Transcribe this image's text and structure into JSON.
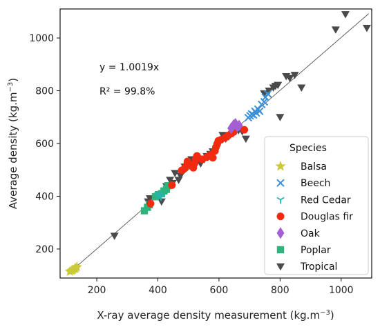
{
  "chart_data": {
    "type": "scatter",
    "xlabel": "X-ray average density measurement (kg.m",
    "ylabel": "Average density (kg.m",
    "unit_exponent": "−3",
    "xlim": [
      80,
      1100
    ],
    "ylim": [
      90,
      1110
    ],
    "xticks": [
      200,
      400,
      600,
      800,
      1000
    ],
    "yticks": [
      200,
      400,
      600,
      800,
      1000
    ],
    "grid": false,
    "legend_position": "lower-right",
    "legend_title": "Species",
    "annotations": {
      "equation": "y = 1.0019x",
      "r2": "R² = 99.8%"
    },
    "fit_line": {
      "slope": 1.0019,
      "x_range": [
        110,
        1090
      ],
      "color": "#555555"
    },
    "series": [
      {
        "name": "Balsa",
        "marker": "star",
        "color": "#c9c93a",
        "points": [
          [
            112,
            115
          ],
          [
            118,
            118
          ],
          [
            122,
            121
          ],
          [
            127,
            124
          ],
          [
            131,
            127
          ],
          [
            135,
            132
          ]
        ]
      },
      {
        "name": "Beech",
        "marker": "x",
        "color": "#3a8fd6",
        "points": [
          [
            696,
            698
          ],
          [
            702,
            705
          ],
          [
            707,
            712
          ],
          [
            713,
            708
          ],
          [
            718,
            722
          ],
          [
            722,
            716
          ],
          [
            728,
            730
          ],
          [
            733,
            722
          ],
          [
            740,
            748
          ],
          [
            748,
            758
          ],
          [
            752,
            775
          ],
          [
            760,
            788
          ]
        ]
      },
      {
        "name": "Red Cedar",
        "marker": "tri",
        "color": "#24b5b0",
        "points": [
          [
            399,
            405
          ],
          [
            404,
            410
          ],
          [
            408,
            403
          ],
          [
            411,
            398
          ]
        ]
      },
      {
        "name": "Douglas fir",
        "marker": "circle",
        "color": "#f22a10",
        "points": [
          [
            376,
            372
          ],
          [
            446,
            442
          ],
          [
            478,
            498
          ],
          [
            488,
            506
          ],
          [
            494,
            518
          ],
          [
            497,
            532
          ],
          [
            510,
            515
          ],
          [
            516,
            508
          ],
          [
            520,
            524
          ],
          [
            524,
            540
          ],
          [
            528,
            553
          ],
          [
            533,
            545
          ],
          [
            545,
            540
          ],
          [
            560,
            548
          ],
          [
            568,
            553
          ],
          [
            575,
            558
          ],
          [
            580,
            546
          ],
          [
            587,
            572
          ],
          [
            590,
            586
          ],
          [
            594,
            598
          ],
          [
            598,
            610
          ],
          [
            606,
            614
          ],
          [
            620,
            622
          ],
          [
            630,
            630
          ],
          [
            640,
            638
          ],
          [
            648,
            644
          ],
          [
            683,
            652
          ]
        ]
      },
      {
        "name": "Oak",
        "marker": "diamond",
        "color": "#a35fd3",
        "points": [
          [
            640,
            658
          ],
          [
            648,
            670
          ],
          [
            654,
            675
          ],
          [
            660,
            664
          ],
          [
            666,
            668
          ]
        ]
      },
      {
        "name": "Poplar",
        "marker": "square",
        "color": "#2fb47e",
        "points": [
          [
            356,
            345
          ],
          [
            366,
            358
          ],
          [
            372,
            368
          ],
          [
            392,
            398
          ],
          [
            402,
            406
          ],
          [
            412,
            410
          ],
          [
            420,
            420
          ],
          [
            428,
            426
          ],
          [
            433,
            440
          ]
        ]
      },
      {
        "name": "Tropical",
        "marker": "triangle-down",
        "color": "#4a4a4a",
        "points": [
          [
            258,
            250
          ],
          [
            368,
            380
          ],
          [
            374,
            392
          ],
          [
            412,
            380
          ],
          [
            428,
            438
          ],
          [
            440,
            462
          ],
          [
            448,
            450
          ],
          [
            456,
            488
          ],
          [
            468,
            462
          ],
          [
            474,
            478
          ],
          [
            480,
            492
          ],
          [
            488,
            512
          ],
          [
            500,
            520
          ],
          [
            510,
            540
          ],
          [
            518,
            530
          ],
          [
            528,
            542
          ],
          [
            540,
            524
          ],
          [
            552,
            540
          ],
          [
            560,
            552
          ],
          [
            572,
            560
          ],
          [
            580,
            570
          ],
          [
            592,
            580
          ],
          [
            600,
            600
          ],
          [
            612,
            632
          ],
          [
            622,
            618
          ],
          [
            632,
            626
          ],
          [
            646,
            638
          ],
          [
            664,
            650
          ],
          [
            676,
            646
          ],
          [
            688,
            618
          ],
          [
            748,
            790
          ],
          [
            764,
            800
          ],
          [
            778,
            812
          ],
          [
            785,
            818
          ],
          [
            793,
            822
          ],
          [
            800,
            700
          ],
          [
            820,
            855
          ],
          [
            832,
            848
          ],
          [
            848,
            860
          ],
          [
            870,
            812
          ],
          [
            982,
            1032
          ],
          [
            1014,
            1090
          ],
          [
            1084,
            1038
          ]
        ]
      }
    ]
  }
}
